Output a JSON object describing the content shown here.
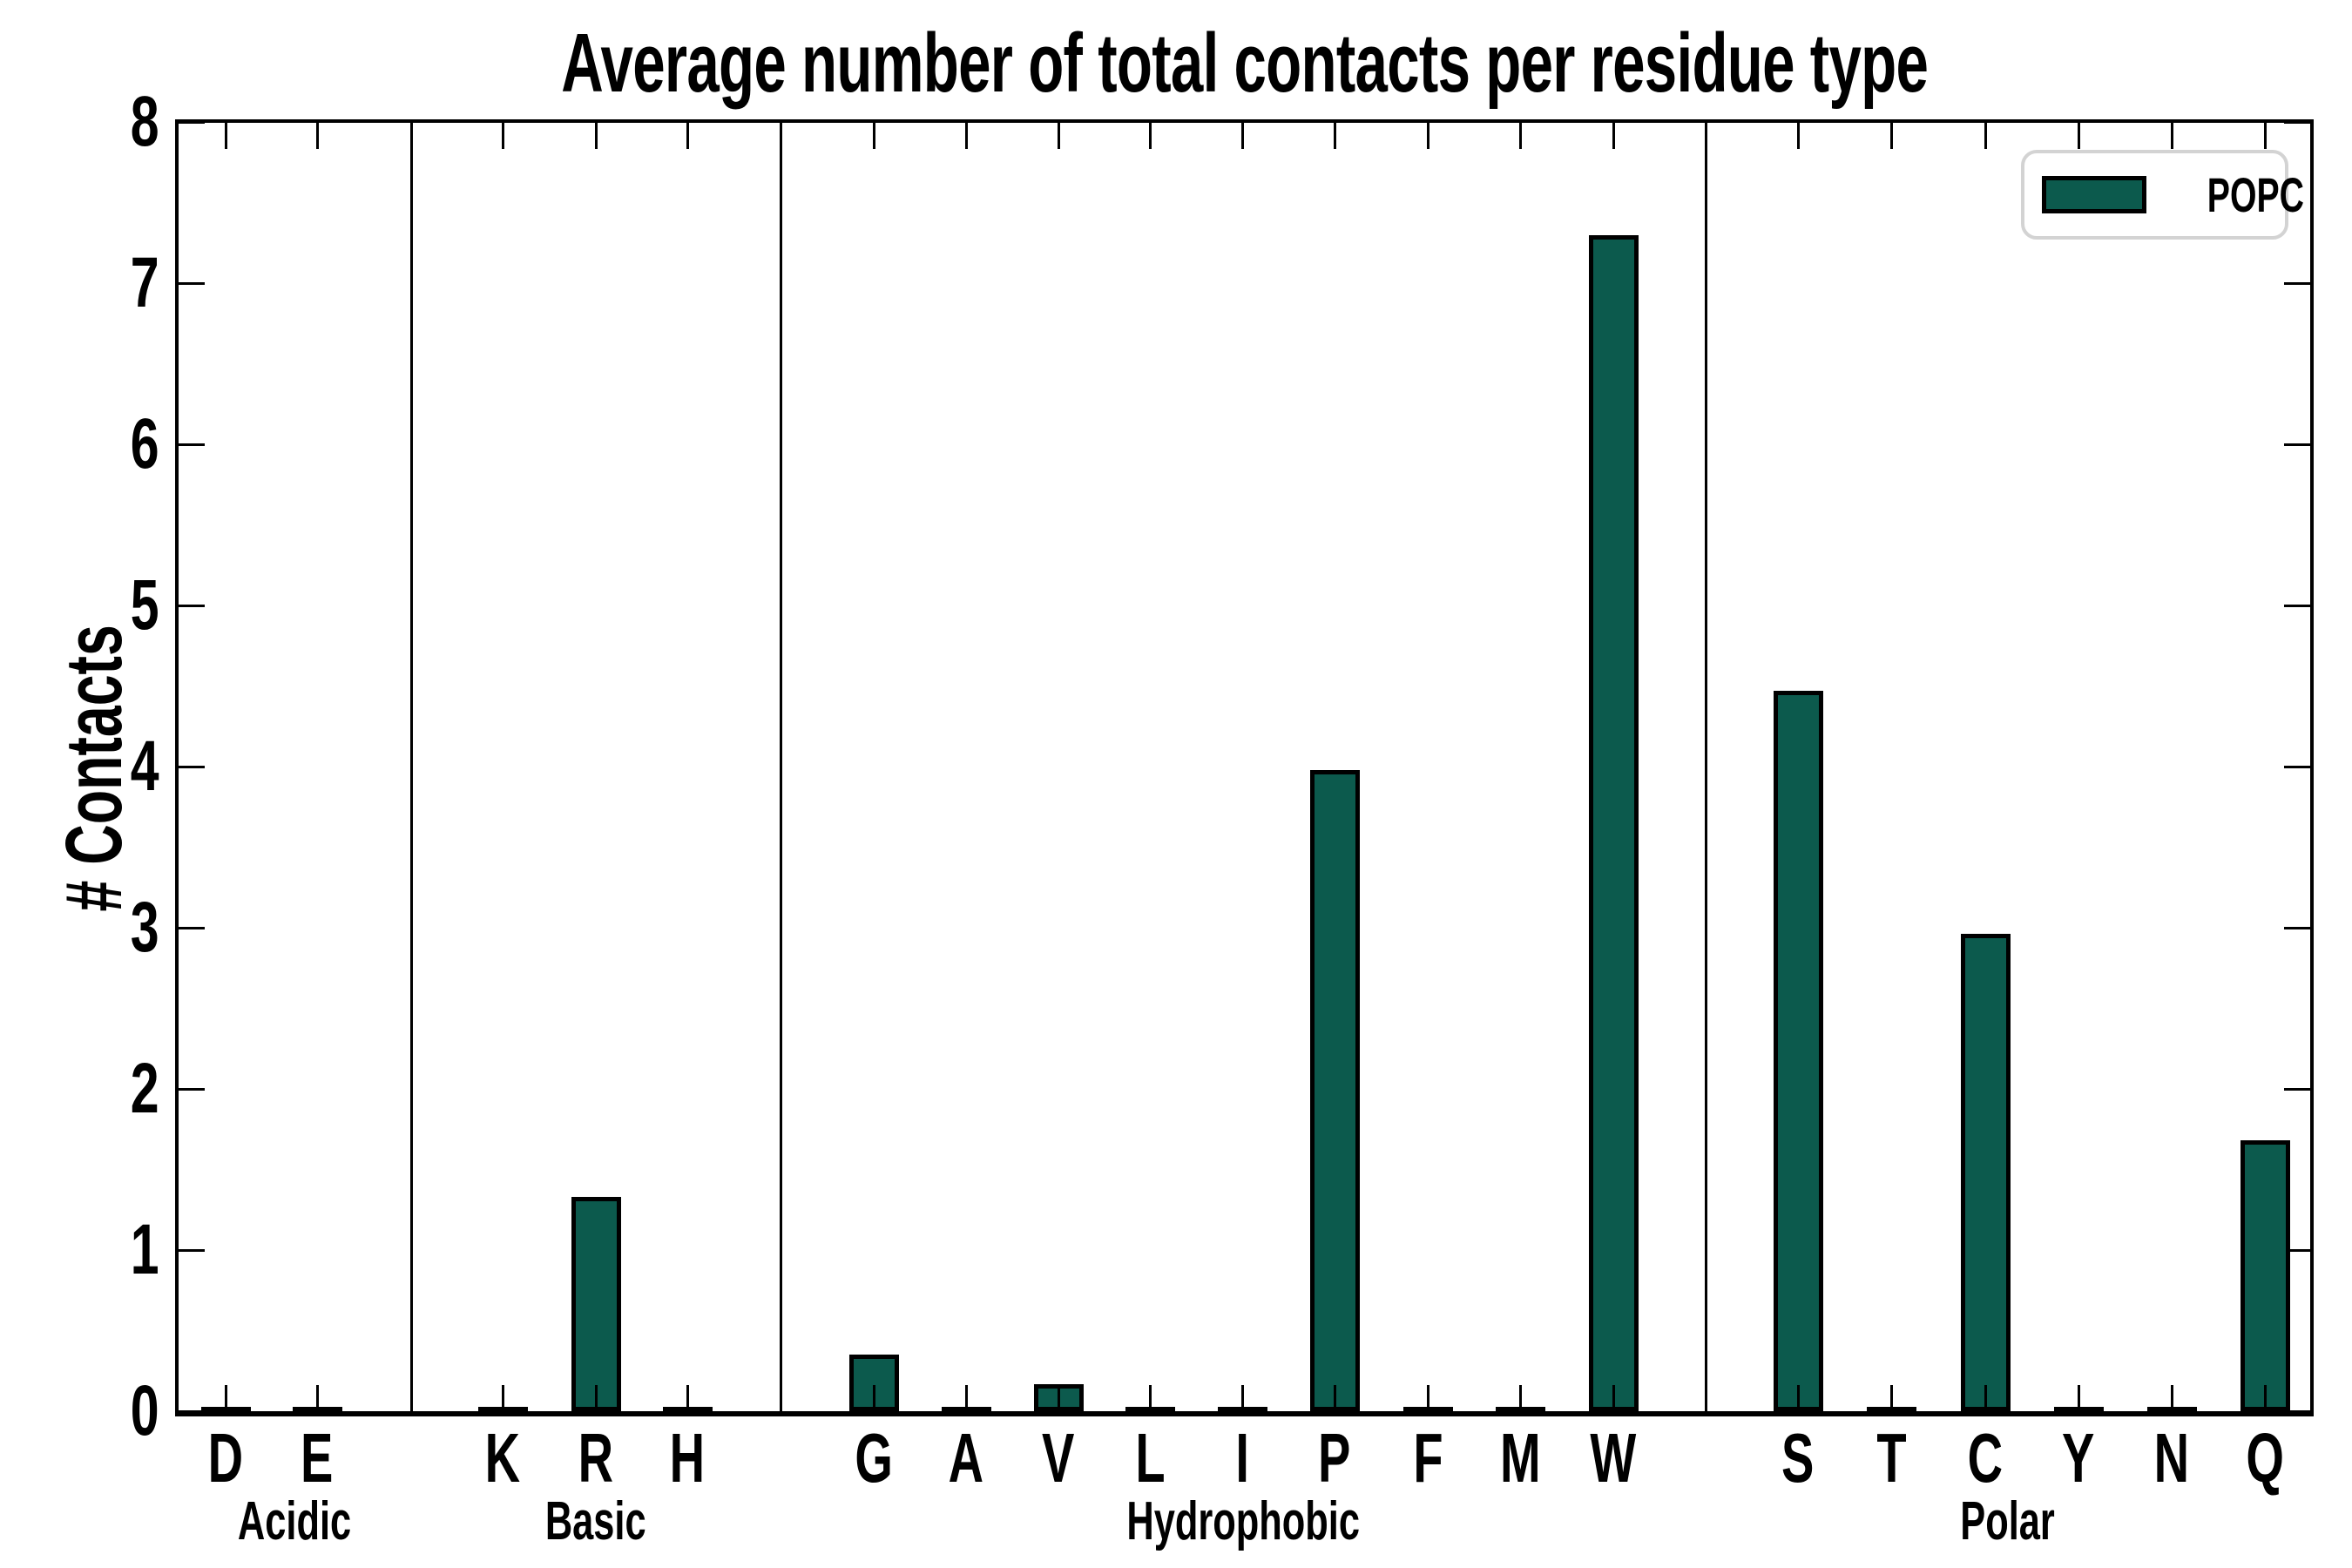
{
  "figure": {
    "title": "Average number of total contacts per residue type",
    "ylabel": "# Contacts",
    "background": "#ffffff"
  },
  "legend": {
    "label": "POPC",
    "swatch_color": "#0c5a4d",
    "swatch_border": "#000000",
    "box_border": "#d3d3d3",
    "position": "upper right"
  },
  "colors": {
    "bar_fill": "#0c5a4d",
    "bar_edge": "#000000",
    "axis": "#000000",
    "text": "#000000"
  },
  "chart_data": {
    "type": "bar",
    "title": "Average number of total contacts per residue type",
    "xlabel": "",
    "ylabel": "# Contacts",
    "ylim": [
      0,
      8
    ],
    "yticks": [
      0,
      1,
      2,
      3,
      4,
      5,
      6,
      7,
      8
    ],
    "grid": false,
    "legend_position": "upper right",
    "series": [
      {
        "name": "POPC",
        "color": "#0c5a4d"
      }
    ],
    "groups": [
      {
        "label": "Acidic",
        "categories": [
          "D",
          "E"
        ],
        "values": [
          0.02,
          0.02
        ]
      },
      {
        "label": "Basic",
        "categories": [
          "K",
          "R",
          "H"
        ],
        "values": [
          0.02,
          1.33,
          0.02
        ]
      },
      {
        "label": "Hydrophobic",
        "categories": [
          "G",
          "A",
          "V",
          "L",
          "I",
          "P",
          "F",
          "M",
          "W"
        ],
        "values": [
          0.35,
          0.02,
          0.17,
          0.02,
          0.02,
          3.98,
          0.02,
          0.02,
          7.3
        ]
      },
      {
        "label": "Polar",
        "categories": [
          "S",
          "T",
          "C",
          "Y",
          "N",
          "Q"
        ],
        "values": [
          4.47,
          0.02,
          2.96,
          0.02,
          0.02,
          1.68
        ]
      }
    ]
  }
}
